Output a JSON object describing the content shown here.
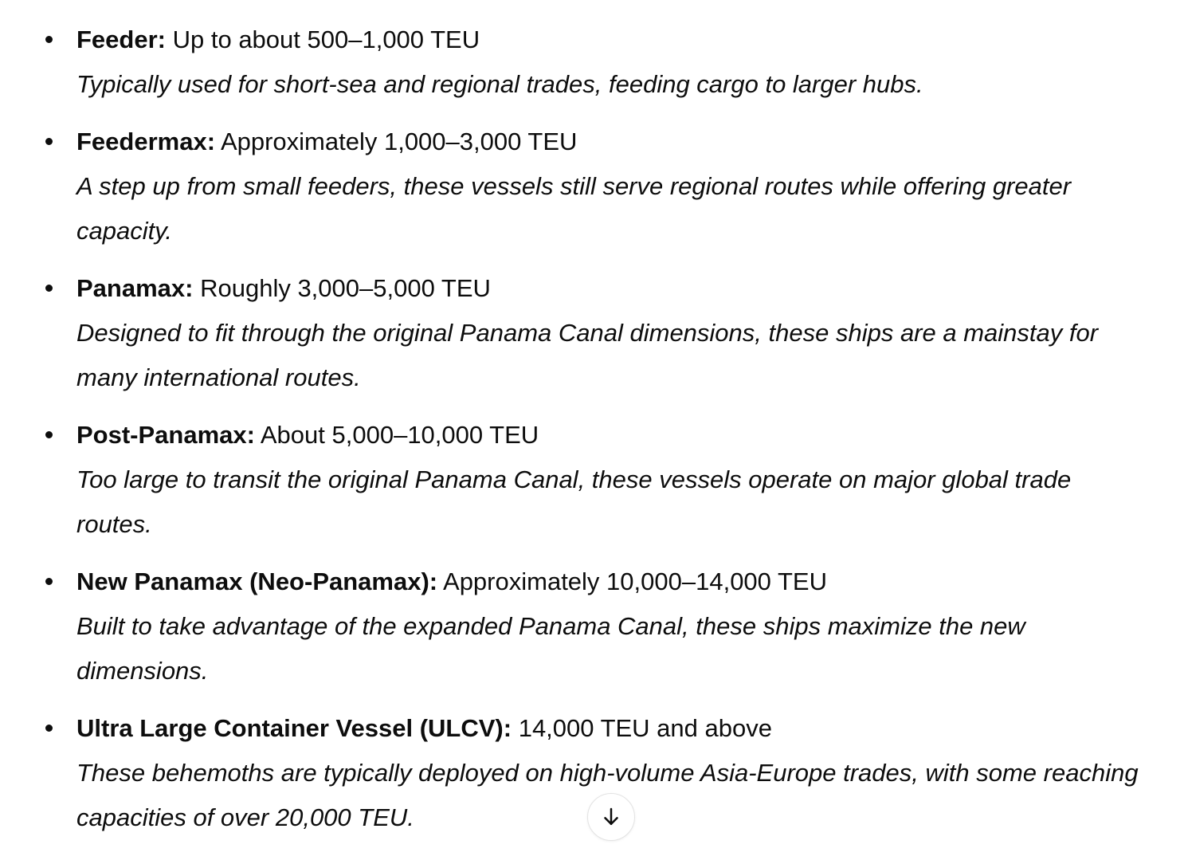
{
  "items": [
    {
      "label": "Feeder:",
      "range": "Up to about 500–1,000 TEU",
      "description": "Typically used for short-sea and regional trades, feeding cargo to larger hubs."
    },
    {
      "label": "Feedermax:",
      "range": "Approximately 1,000–3,000 TEU",
      "description": "A step up from small feeders, these vessels still serve regional routes while offering greater capacity."
    },
    {
      "label": "Panamax:",
      "range": "Roughly 3,000–5,000 TEU",
      "description": "Designed to fit through the original Panama Canal dimensions, these ships are a mainstay for many international routes."
    },
    {
      "label": "Post-Panamax:",
      "range": "About 5,000–10,000 TEU",
      "description": "Too large to transit the original Panama Canal, these vessels operate on major global trade routes."
    },
    {
      "label": "New Panamax (Neo-Panamax):",
      "range": "Approximately 10,000–14,000 TEU",
      "description": "Built to take advantage of the expanded Panama Canal, these ships maximize the new dimensions."
    },
    {
      "label": "Ultra Large Container Vessel (ULCV):",
      "range": "14,000 TEU and above",
      "description": "These behemoths are typically deployed on high-volume Asia-Europe trades, with some reaching capacities of over 20,000 TEU."
    }
  ],
  "scroll_button": {
    "icon": "arrow-down-icon"
  }
}
